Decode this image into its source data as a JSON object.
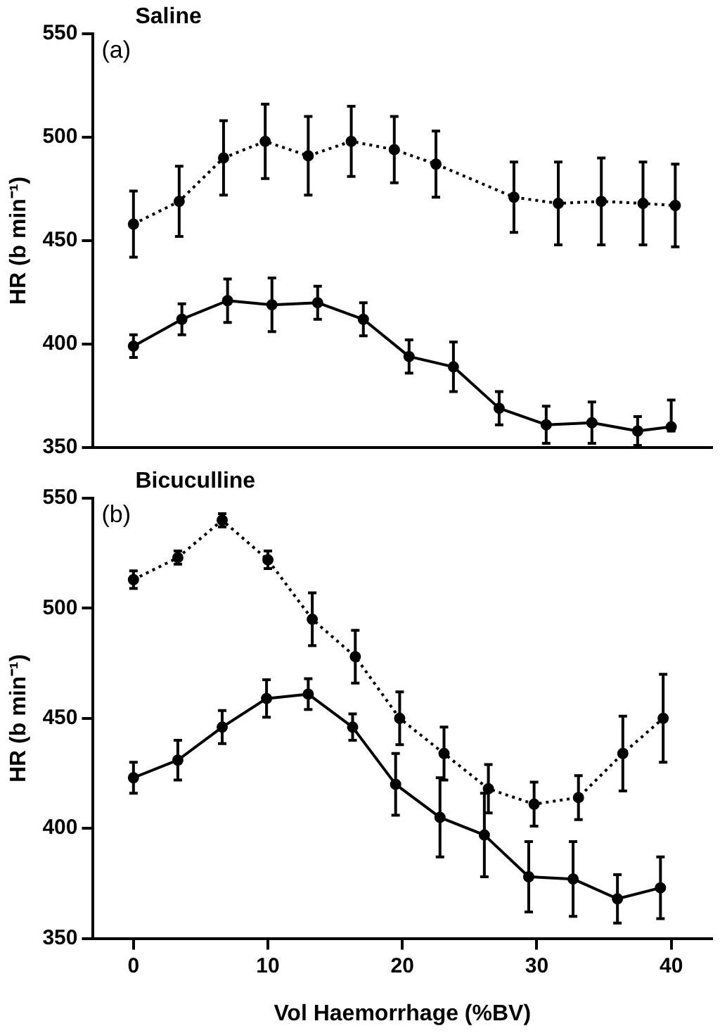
{
  "chart_data": [
    {
      "type": "line",
      "title": "Saline",
      "ylabel": "HR (b min⁻¹)",
      "annotations": [
        "(a)"
      ],
      "xlim": [
        -3,
        43
      ],
      "ylim": [
        350,
        550
      ],
      "yticks": [
        350,
        400,
        450,
        500,
        550
      ],
      "tick_labels": "y",
      "grid": false,
      "legend": false,
      "marker": "circle",
      "series": [
        {
          "color": "#000000",
          "line_style": "dotted",
          "x": [
            0,
            3.4,
            6.7,
            9.8,
            13,
            16.2,
            19.4,
            22.5,
            28.3,
            31.6,
            34.8,
            37.9,
            40.3
          ],
          "values": [
            458,
            469,
            490,
            498,
            491,
            498,
            494,
            487,
            471,
            468,
            469,
            468,
            467
          ],
          "errors": [
            16,
            17,
            18,
            18,
            19,
            17,
            16,
            16,
            17,
            20,
            21,
            20,
            20
          ]
        },
        {
          "color": "#000000",
          "line_style": "solid",
          "x": [
            0,
            3.6,
            7,
            10.3,
            13.7,
            17.1,
            20.5,
            23.8,
            27.2,
            30.7,
            34.1,
            37.5,
            40
          ],
          "values": [
            399,
            412,
            421,
            419,
            420,
            412,
            394,
            389,
            369,
            361,
            362,
            358,
            360
          ],
          "errors": [
            5.5,
            7.5,
            10.5,
            13,
            8,
            8,
            8,
            12,
            8,
            9,
            10,
            7,
            [
              358,
              373
            ]
          ]
        }
      ]
    },
    {
      "type": "line",
      "title": "Bicuculline",
      "xlabel": "Vol Haemorrhage (%BV)",
      "ylabel": "HR (b min⁻¹)",
      "annotations": [
        "(b)"
      ],
      "xlim": [
        -3,
        43
      ],
      "xticks": [
        0,
        10,
        20,
        30,
        40
      ],
      "ylim": [
        350,
        550
      ],
      "yticks": [
        350,
        400,
        450,
        500,
        550
      ],
      "grid": false,
      "legend": false,
      "marker": "circle",
      "series": [
        {
          "color": "#000000",
          "line_style": "dotted",
          "x": [
            0,
            3.3,
            6.6,
            10,
            13.3,
            16.5,
            19.8,
            23.1,
            26.4,
            29.8,
            33.1,
            36.4,
            39.4
          ],
          "values": [
            513,
            523,
            540,
            522,
            495,
            478,
            450,
            434,
            418,
            411,
            414,
            434,
            450
          ],
          "errors": [
            4,
            3,
            3,
            4,
            12,
            12,
            12,
            12,
            11,
            10,
            10,
            17,
            20
          ]
        },
        {
          "color": "#000000",
          "line_style": "solid",
          "x": [
            0,
            3.3,
            6.6,
            9.9,
            13,
            16.3,
            19.5,
            22.8,
            26.1,
            29.4,
            32.7,
            36,
            39.2
          ],
          "values": [
            423,
            431,
            446,
            459,
            461,
            446,
            420,
            405,
            397,
            378,
            377,
            368,
            373
          ],
          "errors": [
            7,
            9,
            7.5,
            8.5,
            7,
            6,
            14,
            18,
            19,
            16,
            17,
            11,
            14
          ]
        }
      ]
    }
  ]
}
